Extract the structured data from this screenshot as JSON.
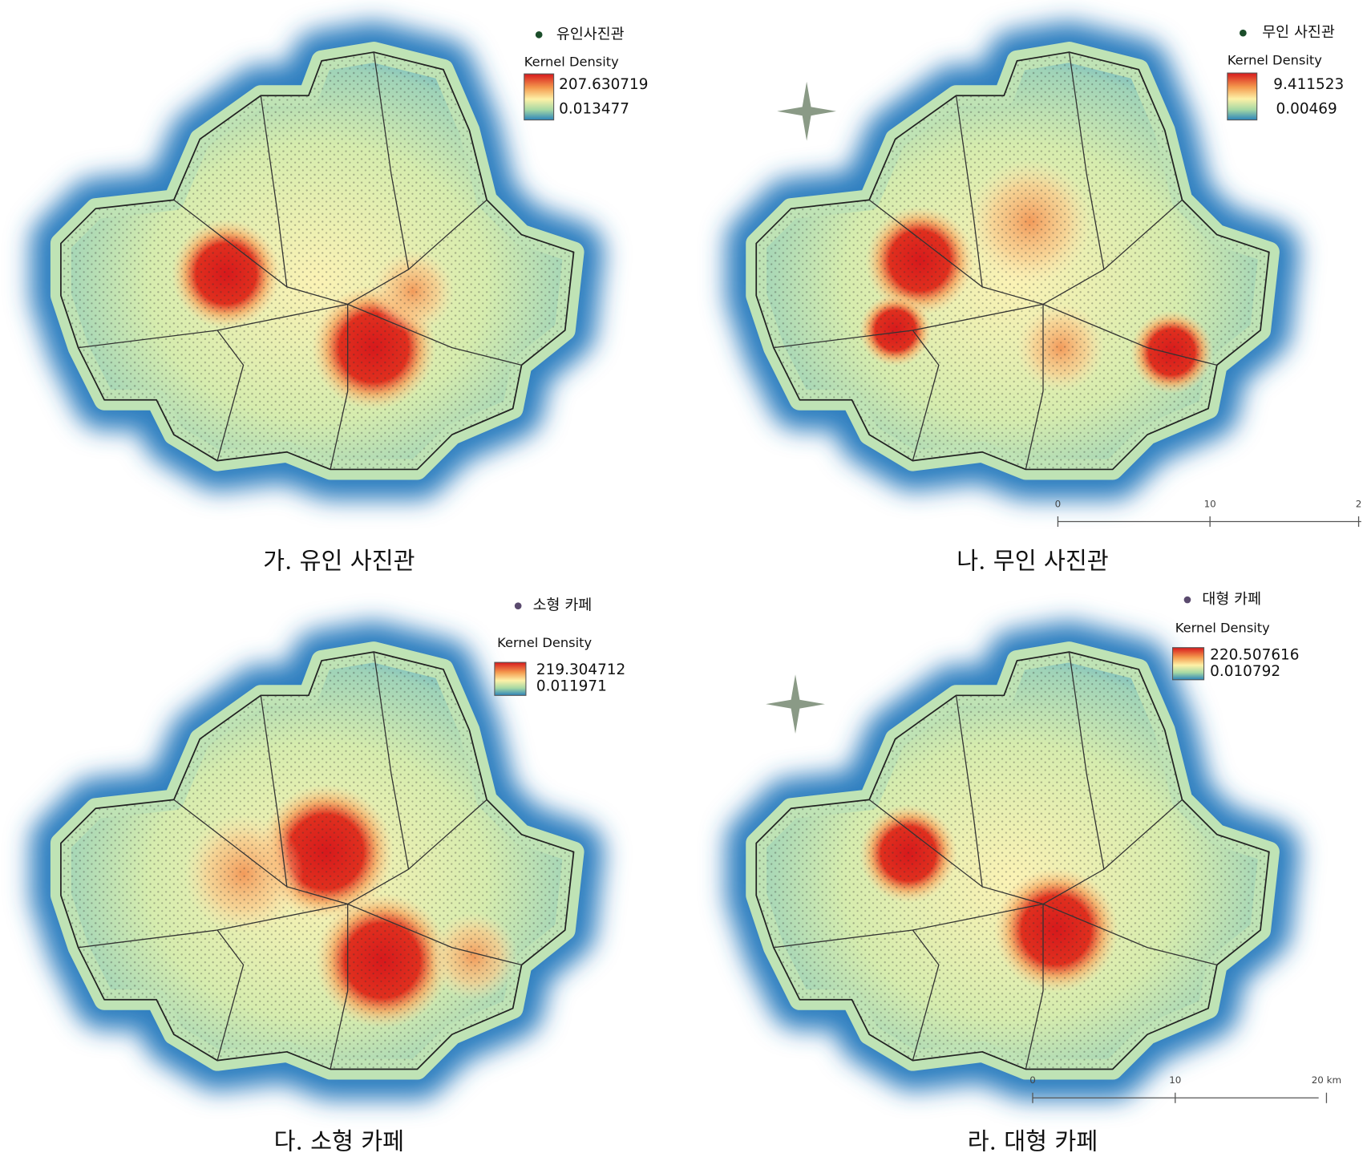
{
  "panels": [
    {
      "legend_label": "유인사진관",
      "legend_title": "Kernel Density",
      "legend_max": "207.630719",
      "legend_min": "0.013477",
      "caption": "가. 유인 사진관"
    },
    {
      "legend_label": "무인 사진관",
      "legend_title": "Kernel Density",
      "legend_max": "9.411523",
      "legend_min": "0.00469",
      "caption": "나. 무인 사진관",
      "scale_bar": [
        "0",
        "10",
        "2"
      ]
    },
    {
      "legend_label": "소형 카페",
      "legend_title": "Kernel Density",
      "legend_max": "219.304712",
      "legend_min": "0.011971",
      "caption": "다. 소형 카페"
    },
    {
      "legend_label": "대형 카페",
      "legend_title": "Kernel Density",
      "legend_max": "220.507616",
      "legend_min": "0.010792",
      "caption": "라. 대형 카페",
      "scale_bar": [
        "0",
        "10",
        "20 km"
      ]
    }
  ]
}
